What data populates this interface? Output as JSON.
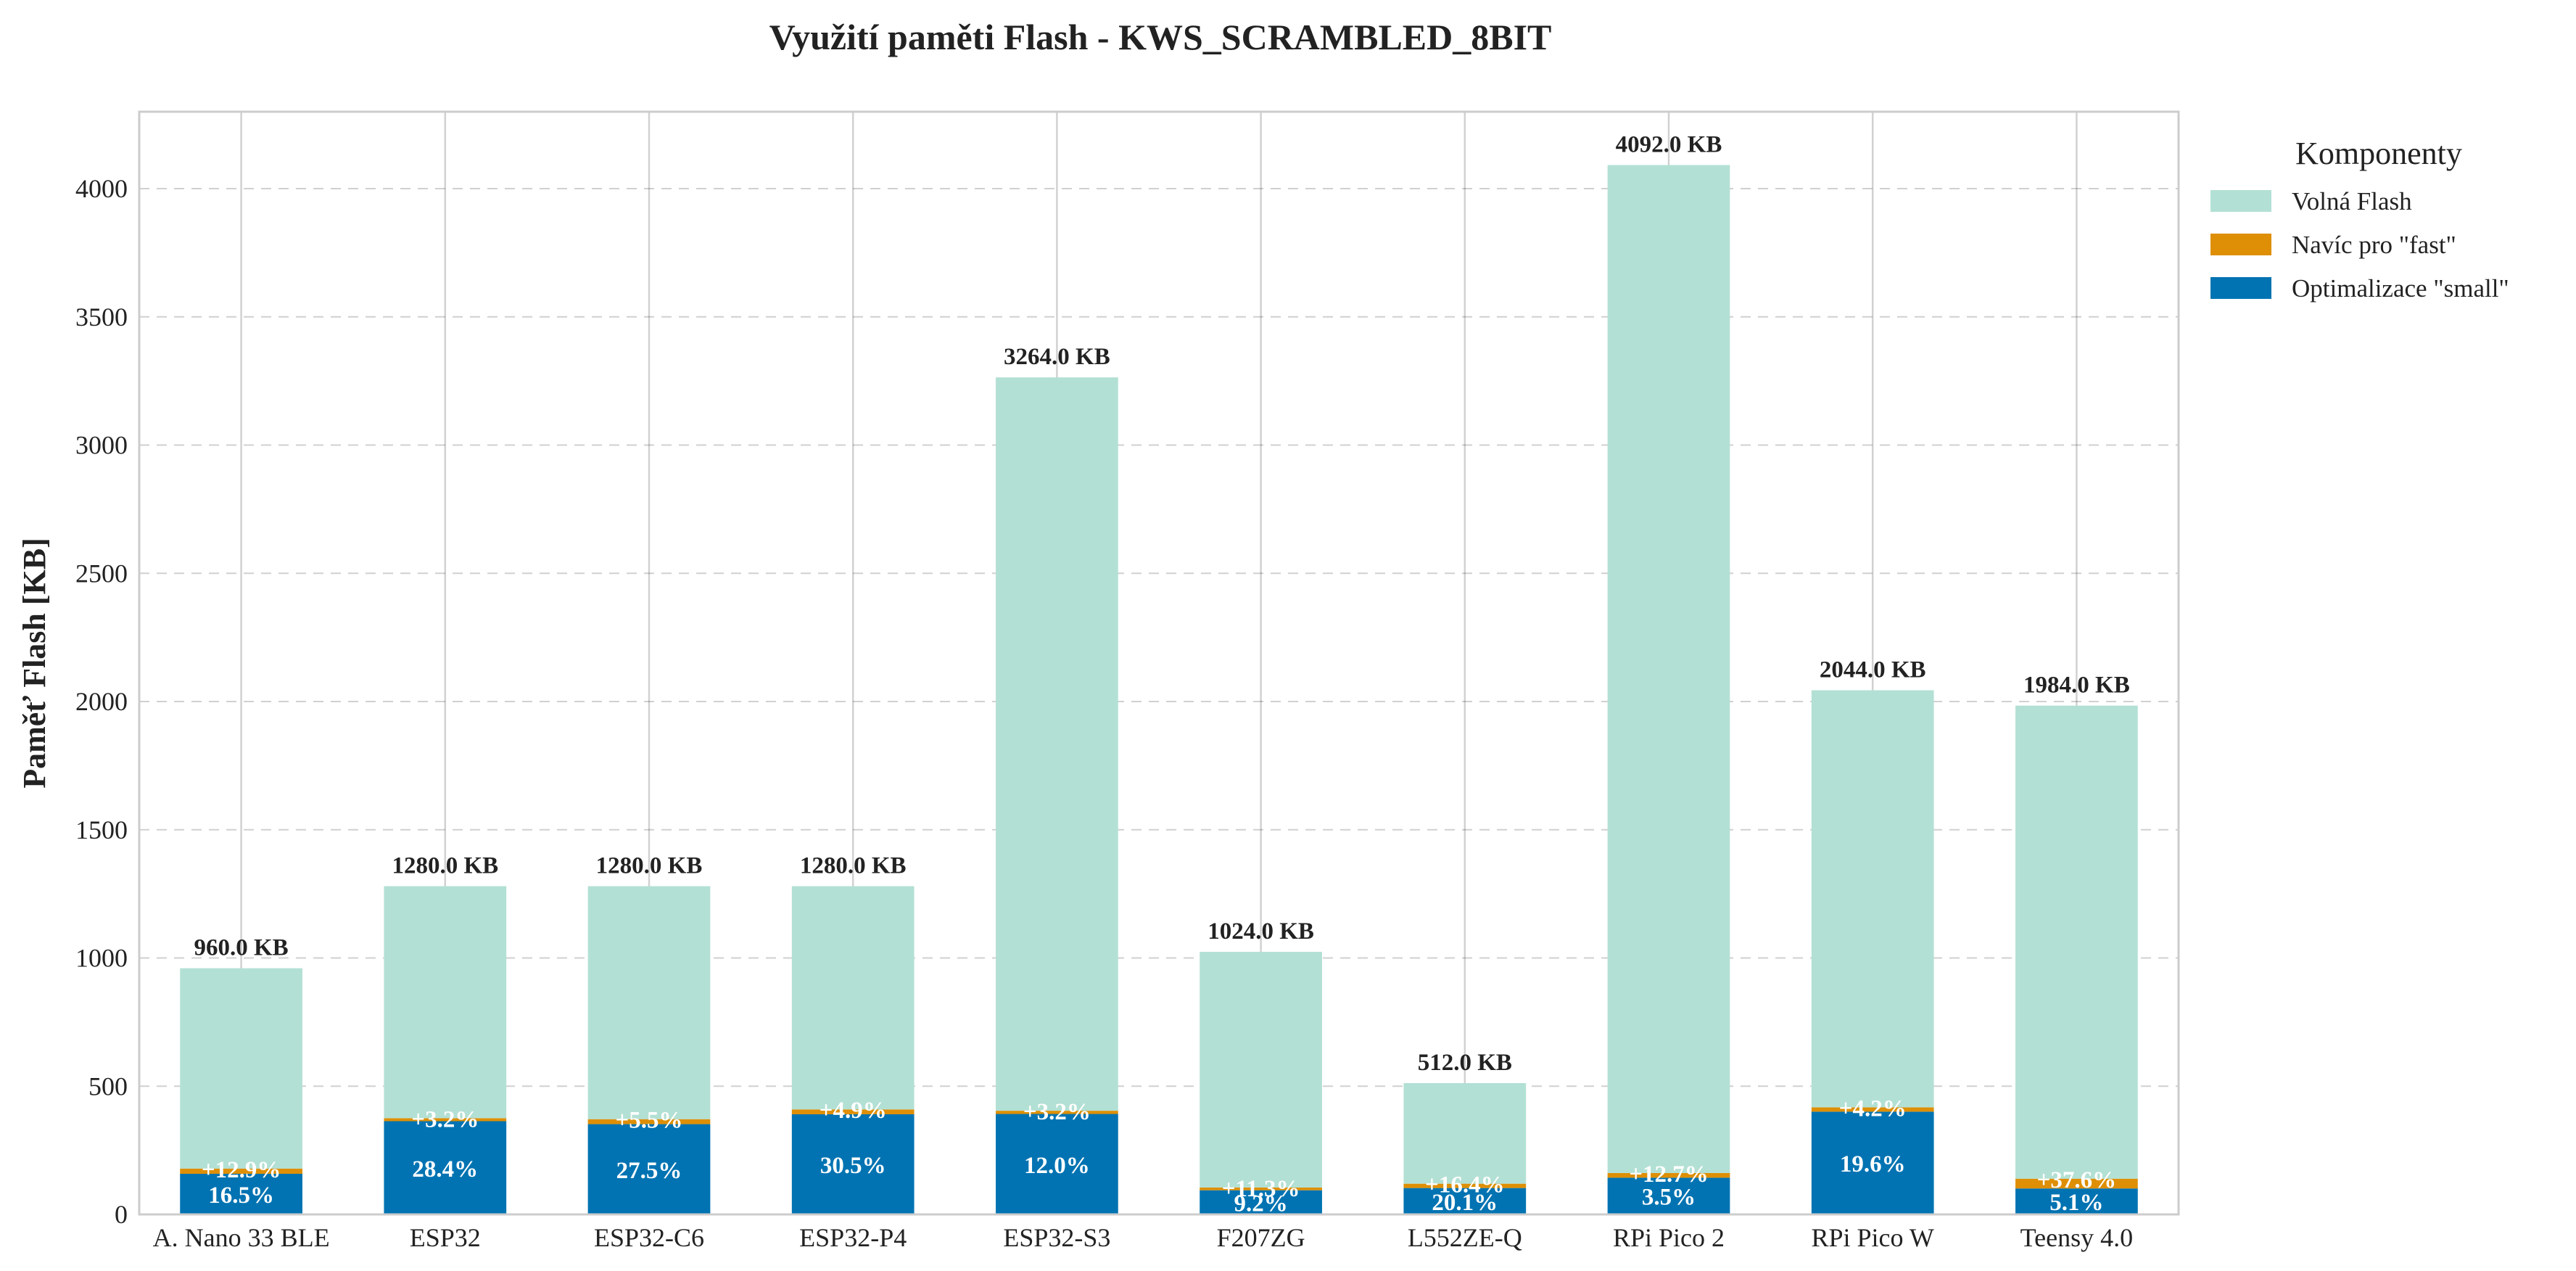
{
  "chart_data": {
    "type": "bar",
    "stacked": true,
    "title": "Využití paměti Flash - KWS_SCRAMBLED_8BIT",
    "xlabel": "",
    "ylabel": "Paměť Flash [KB]",
    "ylim": [
      0,
      4300
    ],
    "yticks": [
      "0",
      "500",
      "1000",
      "1500",
      "2000",
      "2500",
      "3000",
      "3500",
      "4000"
    ],
    "grid": true,
    "legend_position": "outside-top-right",
    "legend_title": "Komponenty",
    "categories": [
      "A. Nano 33 BLE",
      "ESP32",
      "ESP32-C6",
      "ESP32-P4",
      "ESP32-S3",
      "F207ZG",
      "L552ZE-Q",
      "RPi Pico 2",
      "RPi Pico W",
      "Teensy 4.0"
    ],
    "totals": [
      960,
      1280,
      1280,
      1280,
      3264,
      1024,
      512,
      4092,
      2044,
      1984
    ],
    "total_labels": [
      "960.0 KB",
      "1280.0 KB",
      "1280.0 KB",
      "1280.0 KB",
      "3264.0 KB",
      "1024.0 KB",
      "512.0 KB",
      "4092.0 KB",
      "2044.0 KB",
      "1984.0 KB"
    ],
    "series": [
      {
        "name": "Optimalizace \"small\"",
        "color": "#0173b2",
        "values": [
          158.4,
          363.5,
          352.0,
          390.4,
          391.7,
          94.2,
          102.9,
          143.2,
          400.6,
          101.2
        ],
        "labels": [
          "16.5%",
          "28.4%",
          "27.5%",
          "30.5%",
          "12.0%",
          "9.2%",
          "20.1%",
          "3.5%",
          "19.6%",
          "5.1%"
        ]
      },
      {
        "name": "Navíc pro \"fast\"",
        "color": "#de8f05",
        "values": [
          20.4,
          11.6,
          19.4,
          19.1,
          12.5,
          10.6,
          16.9,
          18.2,
          16.8,
          38.1
        ],
        "labels": [
          "+12.9%",
          "+3.2%",
          "+5.5%",
          "+4.9%",
          "+3.2%",
          "+11.3%",
          "+16.4%",
          "+12.7%",
          "+4.2%",
          "+37.6%"
        ]
      },
      {
        "name": "Volná Flash",
        "color": "#b3e0d4",
        "values": [
          781.2,
          904.9,
          908.6,
          870.5,
          2859.8,
          919.2,
          392.2,
          3930.6,
          1626.6,
          1844.7
        ]
      }
    ]
  }
}
